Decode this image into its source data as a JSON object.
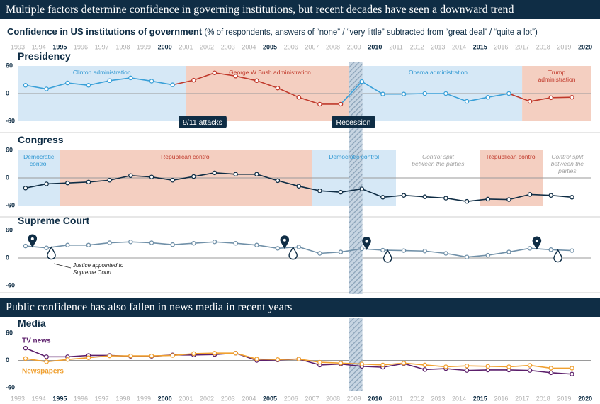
{
  "header": "Multiple factors determine confidence in governing institutions, but recent decades have seen a downward trend",
  "subtitle_bold": "Confidence in US institutions of government",
  "subtitle": "(% of respondents, answers of “none” / “very little” subtracted from “great deal” / “quite a lot”)",
  "section2_header": "Public confidence has also fallen in news media in recent years",
  "chart_data": [
    {
      "type": "line",
      "title": "Presidency",
      "x": [
        1993,
        1994,
        1995,
        1996,
        1997,
        1998,
        1999,
        2000,
        2001,
        2002,
        2003,
        2004,
        2005,
        2006,
        2007,
        2008,
        2009,
        2010,
        2011,
        2012,
        2013,
        2014,
        2015,
        2016,
        2017,
        2018,
        2019
      ],
      "series": [
        {
          "color": "#3aa0d8",
          "values": [
            18,
            10,
            23,
            18,
            28,
            34,
            27,
            19,
            29,
            45,
            38,
            28,
            12,
            -8,
            -23,
            -23,
            26,
            -1,
            -1,
            0,
            0,
            -17,
            -8,
            0,
            -17,
            -9,
            -8
          ]
        }
      ],
      "xlim": [
        1993,
        2020.3
      ],
      "ylim": [
        -60,
        60
      ],
      "yticks": [
        -60,
        0,
        60
      ],
      "zero_line": true,
      "xticks": [
        1993,
        1994,
        1995,
        1996,
        1997,
        1998,
        1999,
        2000,
        2001,
        2002,
        2003,
        2004,
        2005,
        2006,
        2007,
        2008,
        2009,
        2010,
        2011,
        2012,
        2013,
        2014,
        2015,
        2016,
        2017,
        2018,
        2019,
        2020
      ],
      "xtick_bold_step": 5,
      "bands": [
        {
          "label": "Clinton administration",
          "start": 1993,
          "end": 2001,
          "fill": "#d6e8f6",
          "text_color": "#2e97d2",
          "line_color": "#3aa0d8"
        },
        {
          "label": "George W Bush administration",
          "start": 2001,
          "end": 2009,
          "fill": "#f4cfc1",
          "text_color": "#c0392b",
          "line_color": "#c0392b"
        },
        {
          "label": "Obama administration",
          "start": 2009,
          "end": 2017,
          "fill": "#d6e8f6",
          "text_color": "#2e97d2",
          "line_color": "#3aa0d8"
        },
        {
          "label": "Trump administration",
          "start": 2017,
          "end": 2020.3,
          "fill": "#f4cfc1",
          "text_color": "#c0392b",
          "line_color": "#c0392b"
        }
      ],
      "recession": {
        "start": 2008.75,
        "end": 2009.4
      },
      "annotations": [
        {
          "text": "9/11 attacks"
        },
        {
          "text": "Recession"
        }
      ]
    },
    {
      "type": "line",
      "title": "Congress",
      "x": [
        1993,
        1994,
        1995,
        1996,
        1997,
        1998,
        1999,
        2000,
        2001,
        2002,
        2003,
        2004,
        2005,
        2006,
        2007,
        2008,
        2009,
        2010,
        2011,
        2012,
        2013,
        2014,
        2015,
        2016,
        2017,
        2018,
        2019
      ],
      "series": [
        {
          "color": "#0f2d45",
          "values": [
            -22,
            -13,
            -11,
            -9,
            -5,
            5,
            2,
            -5,
            3,
            11,
            8,
            8,
            -6,
            -18,
            -28,
            -31,
            -24,
            -42,
            -38,
            -41,
            -44,
            -51,
            -46,
            -47,
            -36,
            -38,
            -42
          ]
        }
      ],
      "xlim": [
        1993,
        2020.3
      ],
      "ylim": [
        -60,
        60
      ],
      "yticks": [
        -60,
        0,
        60
      ],
      "zero_line": true,
      "bands": [
        {
          "label": "Democratic control",
          "start": 1993,
          "end": 1995,
          "fill": "#d6e8f6",
          "text_color": "#2e97d2"
        },
        {
          "label": "Republican control",
          "start": 1995,
          "end": 2007,
          "fill": "#f4cfc1",
          "text_color": "#c0392b"
        },
        {
          "label": "Democratic control",
          "start": 2007,
          "end": 2011,
          "fill": "#d6e8f6",
          "text_color": "#2e97d2"
        },
        {
          "label": "Control split between the parties",
          "start": 2011,
          "end": 2015,
          "fill": "#ffffff",
          "text_color": "#a0a0a0",
          "label_style": "italic"
        },
        {
          "label": "Republican control",
          "start": 2015,
          "end": 2018,
          "fill": "#f4cfc1",
          "text_color": "#c0392b"
        },
        {
          "label": "Control split between the parties",
          "start": 2018,
          "end": 2020.3,
          "fill": "#ffffff",
          "text_color": "#a0a0a0",
          "label_style": "italic"
        }
      ]
    },
    {
      "type": "line",
      "title": "Supreme Court",
      "x": [
        1993,
        1994,
        1995,
        1996,
        1997,
        1998,
        1999,
        2000,
        2001,
        2002,
        2003,
        2004,
        2005,
        2006,
        2007,
        2008,
        2009,
        2010,
        2011,
        2012,
        2013,
        2014,
        2015,
        2016,
        2017,
        2018,
        2019
      ],
      "series": [
        {
          "color": "#7090a8",
          "values": [
            26,
            22,
            28,
            28,
            33,
            35,
            33,
            29,
            32,
            35,
            32,
            28,
            21,
            24,
            10,
            13,
            20,
            17,
            16,
            15,
            10,
            2,
            6,
            13,
            21,
            18,
            16
          ]
        }
      ],
      "xlim": [
        1993,
        2020.3
      ],
      "ylim": [
        -60,
        60
      ],
      "yticks": [
        -60,
        0,
        60
      ],
      "zero_line": true,
      "appointments": [
        {
          "x": 1993.7,
          "dir": "up"
        },
        {
          "x": 1994.6,
          "dir": "down"
        },
        {
          "x": 2005.7,
          "dir": "up"
        },
        {
          "x": 2006.1,
          "dir": "down"
        },
        {
          "x": 2009.6,
          "dir": "up"
        },
        {
          "x": 2010.6,
          "dir": "down"
        },
        {
          "x": 2017.7,
          "dir": "up"
        },
        {
          "x": 2018.7,
          "dir": "down"
        }
      ],
      "appointment_note": "Justice appointed to Supreme Court"
    },
    {
      "type": "line",
      "title": "Media",
      "x": [
        1993,
        1994,
        1995,
        1996,
        1997,
        1998,
        1999,
        2000,
        2001,
        2002,
        2003,
        2004,
        2005,
        2006,
        2007,
        2008,
        2009,
        2010,
        2011,
        2012,
        2013,
        2014,
        2015,
        2016,
        2017,
        2018,
        2019
      ],
      "series": [
        {
          "name": "TV news",
          "color": "#5c1f6b",
          "values": [
            27,
            8,
            8,
            11,
            11,
            9,
            9,
            12,
            12,
            13,
            16,
            0,
            1,
            3,
            -10,
            -8,
            -13,
            -15,
            -7,
            -20,
            -18,
            -22,
            -21,
            -21,
            -22,
            -27,
            -30
          ]
        },
        {
          "name": "Newspapers",
          "color": "#f0a030",
          "values": [
            4,
            -3,
            2,
            6,
            10,
            10,
            10,
            11,
            15,
            16,
            16,
            3,
            2,
            3,
            -4,
            -6,
            -8,
            -10,
            -6,
            -10,
            -14,
            -12,
            -13,
            -14,
            -11,
            -17,
            -17
          ]
        }
      ],
      "xlim": [
        1993,
        2020.3
      ],
      "ylim": [
        -60,
        60
      ],
      "yticks": [
        -60,
        0,
        60
      ],
      "zero_line": true,
      "xticks": [
        1993,
        1994,
        1995,
        1996,
        1997,
        1998,
        1999,
        2000,
        2001,
        2002,
        2003,
        2004,
        2005,
        2006,
        2007,
        2008,
        2009,
        2010,
        2011,
        2012,
        2013,
        2014,
        2015,
        2016,
        2017,
        2018,
        2019,
        2020
      ],
      "xtick_bold_step": 5
    }
  ]
}
